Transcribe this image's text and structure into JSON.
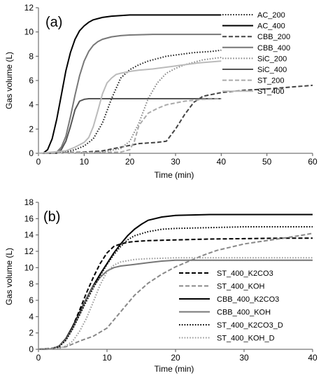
{
  "chart_data": [
    {
      "type": "line",
      "panel_label": "(a)",
      "xlabel": "Time (min)",
      "ylabel": "Gas volume (L)",
      "xlim": [
        0,
        60
      ],
      "ylim": [
        0,
        12
      ],
      "xticks": [
        0,
        10,
        20,
        30,
        40,
        50,
        60
      ],
      "yticks": [
        0,
        2,
        4,
        6,
        8,
        10,
        12
      ],
      "grid": false,
      "legend_position": "top-right",
      "series": [
        {
          "name": "AC_200",
          "color": "#222222",
          "dash": "dotted",
          "x": [
            0,
            6,
            8,
            10,
            12,
            14,
            16,
            18,
            20,
            22,
            24,
            26,
            28,
            30,
            34,
            38,
            40
          ],
          "y": [
            0,
            0.1,
            0.3,
            0.6,
            1.2,
            2.5,
            4.5,
            6.2,
            6.9,
            7.3,
            7.6,
            7.8,
            8.0,
            8.1,
            8.3,
            8.4,
            8.5
          ]
        },
        {
          "name": "AC_400",
          "color": "#000000",
          "dash": "solid",
          "x": [
            0,
            1,
            2,
            3,
            4,
            5,
            6,
            7,
            8,
            9,
            10,
            11,
            12,
            14,
            16,
            18,
            20,
            25,
            30,
            35,
            40
          ],
          "y": [
            0,
            0,
            0.3,
            1.2,
            2.8,
            4.8,
            6.8,
            8.3,
            9.4,
            10.1,
            10.5,
            10.8,
            11.0,
            11.2,
            11.3,
            11.35,
            11.4,
            11.4,
            11.4,
            11.4,
            11.4
          ]
        },
        {
          "name": "CBB_200",
          "color": "#444444",
          "dash": "dashed",
          "x": [
            0,
            10,
            14,
            18,
            22,
            26,
            28,
            30,
            32,
            34,
            36,
            40,
            45,
            50,
            55,
            60
          ],
          "y": [
            0,
            0.1,
            0.2,
            0.5,
            0.8,
            0.9,
            1.0,
            2.0,
            3.2,
            4.2,
            4.7,
            5.0,
            5.2,
            5.3,
            5.45,
            5.6
          ]
        },
        {
          "name": "CBB_400",
          "color": "#777777",
          "dash": "solid",
          "x": [
            0,
            3,
            4,
            5,
            6,
            7,
            8,
            9,
            10,
            11,
            12,
            13,
            14,
            16,
            18,
            20,
            25,
            30,
            35,
            40
          ],
          "y": [
            0,
            0,
            0.1,
            0.5,
            1.4,
            3.0,
            4.8,
            6.4,
            7.6,
            8.4,
            8.9,
            9.2,
            9.4,
            9.6,
            9.7,
            9.75,
            9.8,
            9.8,
            9.8,
            9.8
          ]
        },
        {
          "name": "SiC_200",
          "color": "#888888",
          "dash": "dotted",
          "x": [
            0,
            14,
            18,
            20,
            22,
            24,
            26,
            28,
            30,
            32,
            34,
            36,
            38,
            40
          ],
          "y": [
            0,
            0.1,
            0.4,
            1.0,
            2.5,
            4.5,
            5.8,
            6.6,
            7.0,
            7.3,
            7.5,
            7.7,
            7.8,
            7.9
          ]
        },
        {
          "name": "SiC_400",
          "color": "#555555",
          "dash": "solid",
          "x": [
            0,
            4,
            5,
            6,
            7,
            8,
            9,
            10,
            11,
            12,
            14,
            16,
            20,
            25,
            30,
            35,
            40
          ],
          "y": [
            0,
            0,
            0.3,
            1.0,
            2.2,
            3.6,
            4.3,
            4.45,
            4.5,
            4.5,
            4.5,
            4.5,
            4.5,
            4.5,
            4.5,
            4.5,
            4.5
          ]
        },
        {
          "name": "ST_200",
          "color": "#aaaaaa",
          "dash": "dashed",
          "x": [
            0,
            18,
            20,
            21,
            22,
            24,
            26,
            28,
            30,
            32,
            36,
            40
          ],
          "y": [
            0,
            0.1,
            0.3,
            1.0,
            2.3,
            3.3,
            3.7,
            4.0,
            4.15,
            4.3,
            4.45,
            4.5
          ]
        },
        {
          "name": "ST_400",
          "color": "#bbbbbb",
          "dash": "solid",
          "x": [
            0,
            6,
            8,
            10,
            11,
            12,
            13,
            14,
            15,
            16,
            17,
            18,
            20,
            22,
            25,
            30,
            35,
            40
          ],
          "y": [
            0,
            0.2,
            0.5,
            0.9,
            1.3,
            2.2,
            3.5,
            4.9,
            5.8,
            6.2,
            6.5,
            6.6,
            6.75,
            6.85,
            6.95,
            7.2,
            7.45,
            7.6
          ]
        }
      ]
    },
    {
      "type": "line",
      "panel_label": "(b)",
      "xlabel": "Time (min)",
      "ylabel": "Gas volume (L)",
      "xlim": [
        0,
        40
      ],
      "ylim": [
        0,
        18
      ],
      "xticks": [
        0,
        10,
        20,
        30,
        40
      ],
      "yticks": [
        0,
        2,
        4,
        6,
        8,
        10,
        12,
        14,
        16,
        18
      ],
      "grid": false,
      "legend_position": "center-right",
      "series": [
        {
          "name": "ST_400_K2CO3",
          "color": "#000000",
          "dash": "dashed",
          "x": [
            0,
            2,
            3,
            4,
            5,
            6,
            7,
            8,
            9,
            10,
            11,
            12,
            13,
            14,
            16,
            20,
            25,
            30,
            35,
            40
          ],
          "y": [
            0,
            0.1,
            0.4,
            1.2,
            2.8,
            4.8,
            6.9,
            8.8,
            10.5,
            11.8,
            12.6,
            12.9,
            13.1,
            13.2,
            13.3,
            13.4,
            13.5,
            13.55,
            13.6,
            13.6
          ]
        },
        {
          "name": "ST_400_KOH",
          "color": "#888888",
          "dash": "dashed",
          "x": [
            0,
            4,
            6,
            8,
            10,
            12,
            14,
            16,
            18,
            20,
            22,
            24,
            26,
            28,
            30,
            34,
            38,
            40
          ],
          "y": [
            0,
            0.3,
            1.0,
            1.6,
            2.6,
            4.6,
            6.6,
            8.1,
            9.2,
            10.1,
            10.8,
            11.5,
            12.1,
            12.5,
            12.9,
            13.4,
            13.9,
            14.2
          ]
        },
        {
          "name": "CBB_400_K2CO3",
          "color": "#000000",
          "dash": "solid",
          "x": [
            0,
            2,
            3,
            4,
            5,
            6,
            7,
            8,
            9,
            10,
            11,
            12,
            13,
            14,
            15,
            16,
            18,
            20,
            25,
            30,
            35,
            40
          ],
          "y": [
            0,
            0.05,
            0.4,
            1.3,
            2.8,
            4.5,
            6.2,
            7.8,
            9.2,
            10.5,
            11.8,
            12.9,
            13.9,
            14.7,
            15.3,
            15.8,
            16.2,
            16.4,
            16.5,
            16.5,
            16.5,
            16.5
          ]
        },
        {
          "name": "CBB_400_KOH",
          "color": "#777777",
          "dash": "solid",
          "x": [
            0,
            2,
            3,
            4,
            5,
            6,
            7,
            8,
            9,
            10,
            11,
            12,
            14,
            16,
            18,
            20,
            25,
            30,
            35,
            40
          ],
          "y": [
            0,
            0.05,
            0.4,
            1.2,
            2.6,
            4.3,
            6.1,
            7.7,
            8.8,
            9.6,
            10.0,
            10.2,
            10.4,
            10.6,
            10.8,
            10.9,
            10.9,
            10.9,
            10.9,
            10.9
          ]
        },
        {
          "name": "ST_400_K2CO3_D",
          "color": "#000000",
          "dash": "dotted",
          "x": [
            0,
            2,
            3,
            4,
            5,
            6,
            7,
            8,
            9,
            10,
            11,
            12,
            13,
            14,
            16,
            18,
            20,
            25,
            30,
            35,
            40
          ],
          "y": [
            0,
            0.05,
            0.3,
            1.1,
            2.5,
            4.2,
            5.9,
            7.5,
            9.0,
            10.4,
            11.6,
            12.6,
            13.4,
            13.9,
            14.4,
            14.7,
            14.8,
            14.9,
            15.0,
            15.0,
            15.0
          ]
        },
        {
          "name": "ST_400_KOH_D",
          "color": "#999999",
          "dash": "dotted",
          "x": [
            0,
            3,
            4,
            5,
            6,
            7,
            8,
            9,
            10,
            11,
            12,
            14,
            16,
            20,
            25,
            30,
            35,
            40
          ],
          "y": [
            0,
            0.1,
            0.4,
            1.0,
            2.2,
            3.8,
            5.8,
            7.9,
            9.5,
            10.3,
            10.7,
            11.0,
            11.1,
            11.2,
            11.2,
            11.2,
            11.2,
            11.2
          ]
        }
      ]
    }
  ]
}
